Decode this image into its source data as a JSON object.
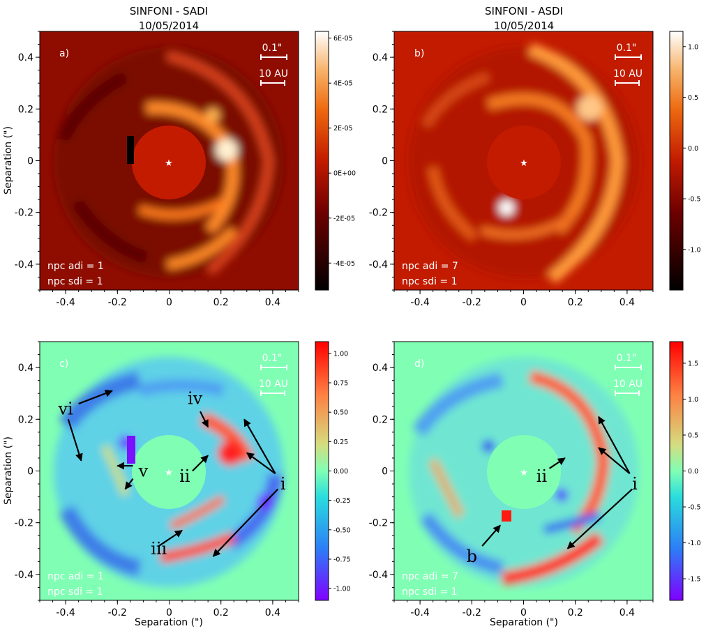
{
  "figure": {
    "xlabel": "Separation (\")",
    "ylabel": "Separation (\")",
    "xticks": [
      -0.4,
      -0.2,
      0,
      0.2,
      0.4
    ],
    "yticks": [
      0.4,
      0.2,
      0,
      -0.2,
      -0.4
    ],
    "xtick_labels": [
      "-0.4",
      "-0.2",
      "0",
      "0.2",
      "0.4"
    ],
    "ytick_labels": [
      "0.4",
      "0.2",
      "0",
      "-0.2",
      "-0.4"
    ],
    "axis_range": [
      -0.5,
      0.5
    ],
    "scalebar_arcsec_label": "0.1\"",
    "scalebar_au_label": "10 AU",
    "star_position": [
      0,
      0
    ]
  },
  "chart_data": [
    {
      "type": "heatmap",
      "panel": "a)",
      "title_line1": "SINFONI - SADI",
      "title_line2": "10/05/2014",
      "colormap": "gist_heat",
      "colorbar_ticks": [
        "6E-05",
        "4E-05",
        "2E-05",
        "0E+00",
        "-2E-05",
        "-4E-05"
      ],
      "colorbar_values": [
        6e-05,
        4e-05,
        2e-05,
        0,
        -2e-05,
        -4e-05
      ],
      "colorbar_range": [
        -5.2e-05,
        6.3e-05
      ],
      "npc_adi": "npc adi = 1",
      "npc_sdi": "npc sdi = 1",
      "xlim": [
        -0.5,
        0.5
      ],
      "ylim": [
        -0.5,
        0.5
      ]
    },
    {
      "type": "heatmap",
      "panel": "b)",
      "title_line1": "SINFONI - ASDI",
      "title_line2": "10/05/2014",
      "colormap": "gist_heat",
      "colorbar_ticks": [
        "1.0",
        "0.5",
        "0.0",
        "-0.5",
        "-1.0"
      ],
      "colorbar_values": [
        1.0,
        0.5,
        0.0,
        -0.5,
        -1.0
      ],
      "colorbar_range": [
        -1.4,
        1.15
      ],
      "npc_adi": "npc adi = 7",
      "npc_sdi": "npc sdi = 1",
      "xlim": [
        -0.5,
        0.5
      ],
      "ylim": [
        -0.5,
        0.5
      ]
    },
    {
      "type": "heatmap",
      "panel": "c)",
      "colormap": "rainbow",
      "colorbar_ticks": [
        "1.00",
        "0.75",
        "0.50",
        "0.25",
        "0.00",
        "-0.25",
        "-0.50",
        "-0.75",
        "-1.00"
      ],
      "colorbar_values": [
        1.0,
        0.75,
        0.5,
        0.25,
        0.0,
        -0.25,
        -0.5,
        -0.75,
        -1.0
      ],
      "colorbar_range": [
        -1.1,
        1.1
      ],
      "npc_adi": "npc adi = 1",
      "npc_sdi": "npc sdi = 1",
      "xlim": [
        -0.5,
        0.5
      ],
      "ylim": [
        -0.5,
        0.5
      ],
      "annotations": [
        {
          "label": "vi",
          "text_at": [
            -0.4,
            0.24
          ],
          "arrows": [
            [
              -0.35,
              0.26,
              -0.22,
              0.31
            ],
            [
              -0.39,
              0.2,
              -0.34,
              0.04
            ]
          ]
        },
        {
          "label": "iv",
          "text_at": [
            0.1,
            0.28
          ],
          "arrows": [
            [
              0.12,
              0.23,
              0.15,
              0.17
            ]
          ]
        },
        {
          "label": "v",
          "text_at": [
            -0.1,
            0.0
          ],
          "arrows": [
            [
              -0.14,
              0.02,
              -0.2,
              0.02
            ],
            [
              -0.14,
              -0.03,
              -0.17,
              -0.07
            ]
          ]
        },
        {
          "label": "ii",
          "text_at": [
            0.06,
            -0.02
          ],
          "arrows": [
            [
              0.09,
              0.0,
              0.15,
              0.06
            ]
          ]
        },
        {
          "label": "i",
          "text_at": [
            0.44,
            -0.05
          ],
          "arrows": [
            [
              0.41,
              -0.01,
              0.29,
              0.2
            ],
            [
              0.41,
              -0.01,
              0.3,
              0.07
            ],
            [
              0.42,
              -0.07,
              0.17,
              -0.33
            ]
          ]
        },
        {
          "label": "iii",
          "text_at": [
            -0.04,
            -0.3
          ],
          "arrows": [
            [
              -0.04,
              -0.29,
              0.05,
              -0.23
            ]
          ]
        }
      ]
    },
    {
      "type": "heatmap",
      "panel": "d)",
      "colormap": "rainbow",
      "colorbar_ticks": [
        "1.5",
        "1.0",
        "0.5",
        "0.0",
        "-0.5",
        "-1.0",
        "-1.5"
      ],
      "colorbar_values": [
        1.5,
        1.0,
        0.5,
        0.0,
        -0.5,
        -1.0,
        -1.5
      ],
      "colorbar_range": [
        -1.8,
        1.8
      ],
      "npc_adi": "npc adi = 7",
      "npc_sdi": "npc sdi = 1",
      "xlim": [
        -0.5,
        0.5
      ],
      "ylim": [
        -0.5,
        0.5
      ],
      "annotations": [
        {
          "label": "ii",
          "text_at": [
            0.07,
            -0.02
          ],
          "arrows": [
            [
              0.1,
              0.01,
              0.16,
              0.05
            ]
          ]
        },
        {
          "label": "i",
          "text_at": [
            0.43,
            -0.05
          ],
          "arrows": [
            [
              0.41,
              -0.01,
              0.29,
              0.21
            ],
            [
              0.41,
              -0.01,
              0.29,
              0.09
            ],
            [
              0.42,
              -0.07,
              0.17,
              -0.3
            ]
          ]
        },
        {
          "label": "b",
          "text_at": [
            -0.2,
            -0.33
          ],
          "arrows": [
            [
              -0.16,
              -0.29,
              -0.09,
              -0.21
            ]
          ]
        }
      ]
    }
  ]
}
